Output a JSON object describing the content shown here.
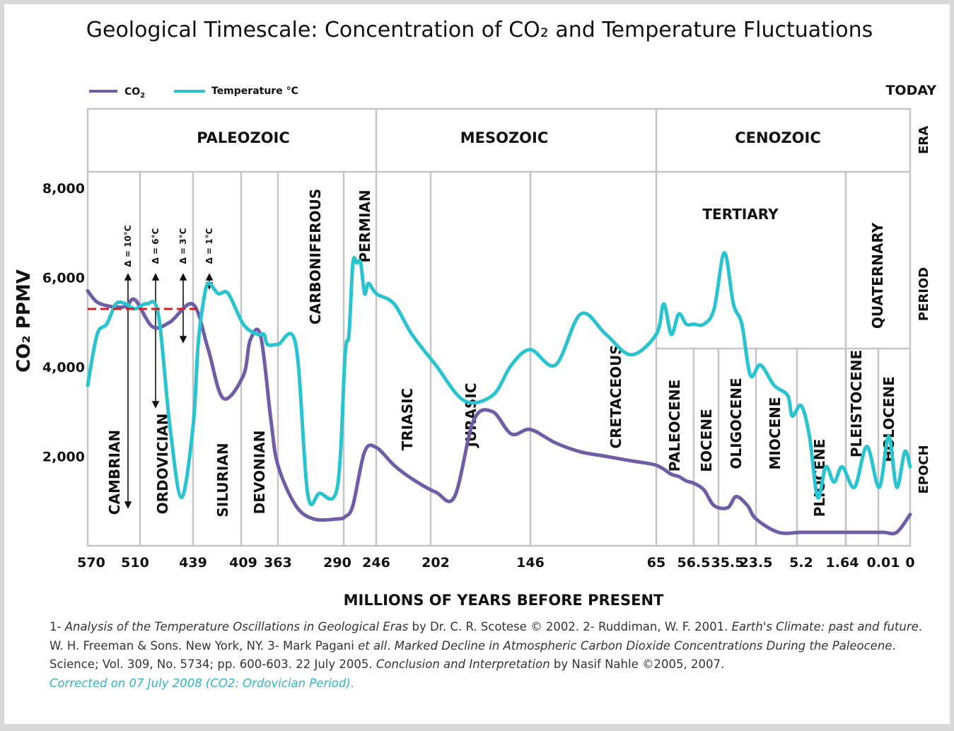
{
  "chart_data": {
    "type": "line",
    "title": "Geological Timescale: Concentration of CO₂ and Temperature Fluctuations",
    "xlabel": "MILLIONS OF YEARS BEFORE PRESENT",
    "ylabel": "CO₂ PPMV",
    "ylim": [
      0,
      8000
    ],
    "y_ticks": [
      "8,000",
      "6,000",
      "4,000",
      "2,000"
    ],
    "x_ticks": [
      "570",
      "510",
      "439",
      "409",
      "363",
      "290",
      "246",
      "202",
      "146",
      "65",
      "56.5",
      "35.5",
      "23.5",
      "5.2",
      "1.64",
      "0.01",
      "0"
    ],
    "today_label": "TODAY",
    "legend": {
      "placement": "top-left",
      "co2_label": "CO",
      "co2_sub": "2",
      "temp_label": "Temperature °C"
    },
    "row_labels": {
      "era": "ERA",
      "period": "PERIOD",
      "epoch": "EPOCH"
    },
    "eras": [
      "PALEOZOIC",
      "MESOZOIC",
      "CENOZOIC"
    ],
    "periods": [
      "CAMBRIAN",
      "ORDOVICIAN",
      "SILURIAN",
      "DEVONIAN",
      "CARBONIFEROUS",
      "PERMIAN",
      "TRIASIC",
      "JURASIC",
      "CRETACEOUS",
      "TERTIARY",
      "QUATERNARY"
    ],
    "epochs": [
      "PALEOCENE",
      "EOCENE",
      "OLIGOCENE",
      "MIOCENE",
      "PLIOCENE",
      "PLEISTOCENE",
      "HOLOCENE"
    ],
    "deltas": [
      "Δ = 10°C",
      "Δ = 6°C",
      "Δ = 3°C",
      "Δ = 1°C"
    ],
    "colors": {
      "co2": "#6f5da6",
      "temperature": "#29c4cf",
      "reference_line": "#d42020",
      "grid": "#c4c4c4"
    },
    "series": [
      {
        "name": "CO₂",
        "ticks": [
          0,
          0.2,
          0.5,
          0.8,
          1,
          1.3,
          1.6,
          2,
          2.3,
          2.6,
          3,
          3.2,
          3.5,
          3.8,
          4,
          4.3,
          4.6,
          5,
          5.2,
          5.4,
          5.7,
          6,
          6.3,
          6.6,
          7,
          7.2,
          7.4,
          7.6,
          7.8,
          8,
          8.2,
          8.4,
          8.6,
          8.8,
          9,
          9.4,
          9.6,
          9.8,
          10,
          10.3,
          10.6,
          11,
          11.3,
          11.7,
          12,
          12.5,
          13,
          13.5,
          14,
          14.5,
          15,
          15.5,
          16
        ],
        "values": [
          5700,
          5450,
          5350,
          5350,
          5500,
          4900,
          5000,
          5400,
          4400,
          3300,
          3800,
          4600,
          4700,
          2800,
          1800,
          900,
          600,
          600,
          650,
          900,
          2100,
          2200,
          1800,
          1500,
          1200,
          1100,
          2800,
          3000,
          2500,
          2600,
          2300,
          2100,
          2000,
          1900,
          1800,
          1600,
          1550,
          1450,
          1400,
          1250,
          900,
          850,
          1100,
          900,
          600,
          300,
          300,
          300,
          300,
          300,
          300,
          300,
          700
        ]
      },
      {
        "name": "Temperature °C",
        "ticks": [
          0,
          0.2,
          0.4,
          0.6,
          0.8,
          1,
          1.2,
          1.4,
          1.6,
          1.8,
          2,
          2.1,
          2.2,
          2.3,
          2.5,
          2.7,
          3,
          3.4,
          3.6,
          3.7,
          4,
          4.3,
          4.5,
          4.7,
          5,
          5.2,
          5.3,
          5.4,
          5.5,
          5.6,
          5.7,
          5.8,
          6,
          6.3,
          6.6,
          7,
          7.3,
          7.6,
          7.8,
          8,
          8.2,
          8.4,
          8.6,
          8.8,
          9,
          9.2,
          9.4,
          9.6,
          9.8,
          10,
          10.3,
          10.6,
          10.9,
          11.2,
          11.5,
          11.8,
          12.1,
          12.4,
          12.7,
          12.8,
          13,
          13.2,
          13.4,
          13.6,
          13.8,
          14,
          14.3,
          14.6,
          14.9,
          15.2,
          15.5,
          15.8,
          16
        ],
        "values": [
          12,
          17,
          18,
          20,
          20,
          19.5,
          20,
          19,
          8,
          1,
          8,
          16,
          20,
          22,
          21,
          21,
          18,
          17,
          17,
          16,
          16,
          16,
          1.4,
          1.4,
          2,
          15,
          17,
          24,
          24,
          24,
          21,
          22,
          21,
          20,
          17,
          14,
          10.5,
          11,
          14,
          15.5,
          14,
          19,
          17,
          15,
          17,
          20,
          17,
          19,
          18,
          18,
          18,
          19.5,
          25,
          20,
          18,
          13,
          14,
          12,
          11,
          9,
          10,
          7,
          1,
          4,
          2.5,
          4,
          2,
          6,
          2,
          7,
          2,
          5.5,
          4
        ]
      }
    ]
  },
  "footnote": {
    "r1_num": "1- ",
    "r1_title": "Analysis of the Temperature Oscillations in Geological Eras",
    "r1_by": " by Dr. C. R. Scotese © 2002. 2- Ruddiman, W. F. 2001. ",
    "r2_title": "Earth's Climate: past and future",
    "r2_pub": ". W. H. Freeman & Sons. New York, NY. 3- Mark Pagani ",
    "r3_etall": "et all",
    "r3_dot": ". ",
    "r3_title": "Marked Decline in Atmospheric Carbon Dioxide Concentrations During the Paleocene",
    "r3_pub": ". Science; Vol. 309, No. 5734; pp. 600-603. 22 July 2005. ",
    "r4_title": "Conclusion and Interpretation",
    "r4_by": " by Nasif Nahle ©2005, 2007.",
    "correction": "Corrected on 07 July 2008 (CO2: Ordovician Period)."
  }
}
